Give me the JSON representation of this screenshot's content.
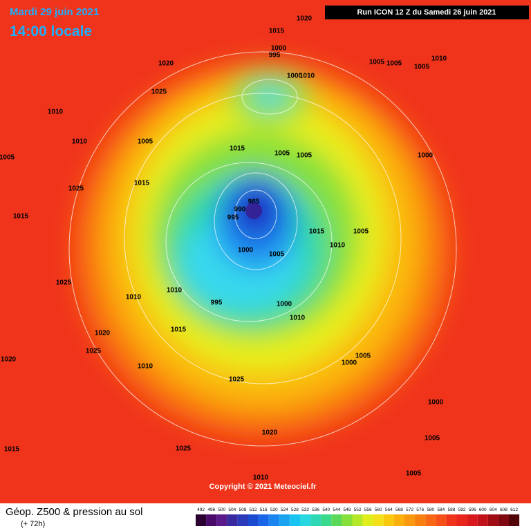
{
  "header": {
    "date": "Mardi 29 juin 2021",
    "time": "14:00 locale",
    "run": "Run ICON 12 Z du Samedi 26 juin 2021"
  },
  "copyright": "Copyright © 2021 Meteociel.fr",
  "footer": {
    "title": "Géop. Z500 & pression au sol",
    "lead": "(+ 72h)"
  },
  "legend": {
    "values": [
      492,
      496,
      500,
      504,
      508,
      512,
      516,
      520,
      524,
      528,
      532,
      536,
      540,
      544,
      548,
      552,
      556,
      560,
      564,
      568,
      572,
      576,
      580,
      584,
      588,
      592,
      596,
      600,
      604,
      608,
      612
    ]
  },
  "pressure_labels": [
    "1015",
    "1020",
    "1000",
    "995",
    "1010",
    "1000",
    "1005",
    "1005",
    "1005",
    "1010",
    "1020",
    "1025",
    "1010",
    "1010",
    "1005",
    "1005",
    "1015",
    "1025",
    "1015",
    "1015",
    "1005",
    "1005",
    "1000",
    "985",
    "990",
    "995",
    "1000",
    "1005",
    "1015",
    "1010",
    "1005",
    "1025",
    "1010",
    "1010",
    "995",
    "1000",
    "1010",
    "1015",
    "1020",
    "1025",
    "1020",
    "1010",
    "1025",
    "1005",
    "1000",
    "1020",
    "1025",
    "1015",
    "1010",
    "1005",
    "1000",
    "1005"
  ]
}
